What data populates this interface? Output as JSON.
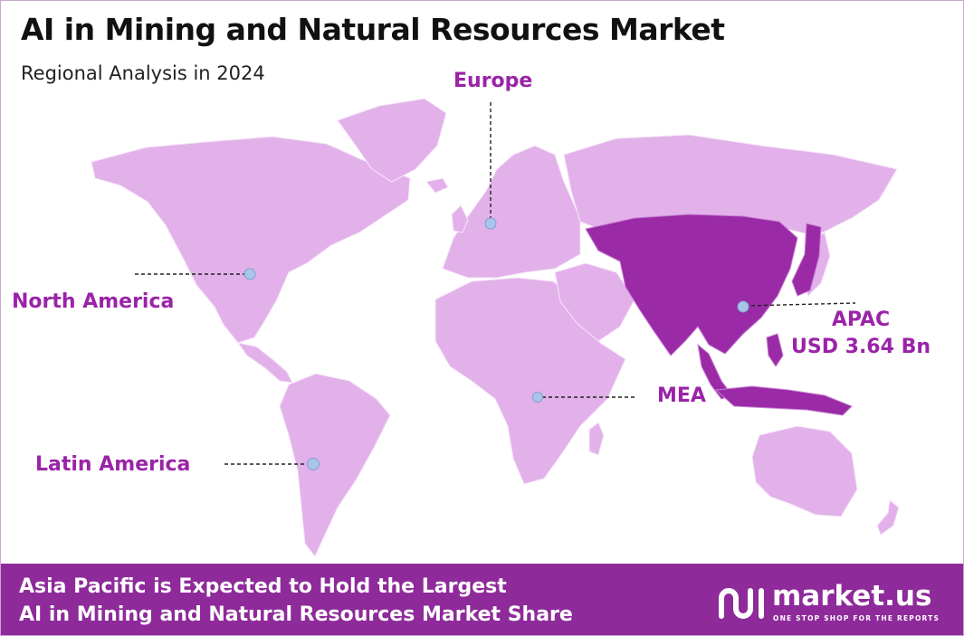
{
  "header": {
    "title": "AI in Mining and Natural Resources Market",
    "subtitle": "Regional Analysis in 2024"
  },
  "regions": {
    "north_america": {
      "label": "North America"
    },
    "europe": {
      "label": "Europe"
    },
    "apac": {
      "label": "APAC",
      "value": "USD 3.64 Bn",
      "highlighted": true
    },
    "mea": {
      "label": "MEA"
    },
    "latin_america": {
      "label": "Latin America"
    }
  },
  "footer": {
    "line1": "Asia Pacific is Expected to Hold the Largest",
    "line2": "AI in Mining and Natural Resources Market Share"
  },
  "logo": {
    "name": "market.us",
    "tagline": "ONE STOP SHOP FOR THE REPORTS"
  },
  "colors": {
    "land": "#e2b1ea",
    "apac_land": "#9a2aa6",
    "label": "#9b23a8",
    "marker": "#a9c5ea",
    "footer_bg": "#8e2a9a"
  }
}
